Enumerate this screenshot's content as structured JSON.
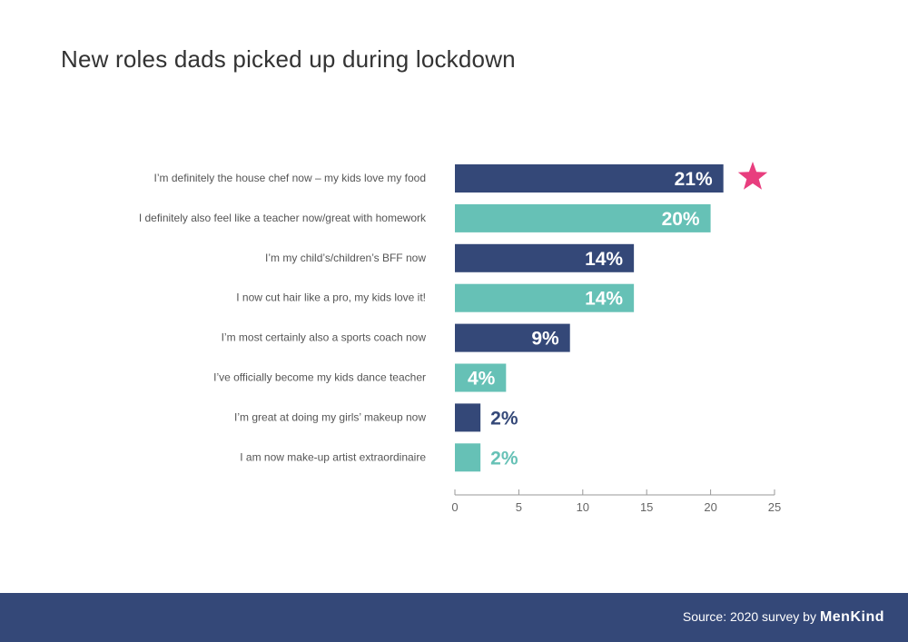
{
  "chart_data": {
    "type": "bar",
    "orientation": "horizontal",
    "title": "New roles dads picked up during lockdown",
    "categories": [
      "I’m definitely the house chef now – my kids love my food",
      "I definitely also feel like a teacher now/great with homework",
      "I’m my child’s/children’s BFF now",
      "I now cut hair like a pro, my kids love it!",
      "I’m most certainly also a sports coach now",
      "I’ve officially become my kids dance teacher",
      "I’m great at doing my girls’ makeup now",
      "I am now make-up artist extraordinaire"
    ],
    "values": [
      21,
      20,
      14,
      14,
      9,
      4,
      2,
      2
    ],
    "labels": [
      "21%",
      "20%",
      "14%",
      "14%",
      "9%",
      "4%",
      "2%",
      "2%"
    ],
    "colors": [
      "#344878",
      "#66c1b6",
      "#344878",
      "#66c1b6",
      "#344878",
      "#66c1b6",
      "#344878",
      "#66c1b6"
    ],
    "highlight": "star on top bar",
    "highlight_color": "#e83e7e",
    "xlim": [
      0,
      25
    ],
    "xticks": [
      0,
      5,
      10,
      15,
      20,
      25
    ],
    "grid": false
  },
  "footer": {
    "source": "Source: 2020 survey by",
    "brand": "MenKind"
  }
}
